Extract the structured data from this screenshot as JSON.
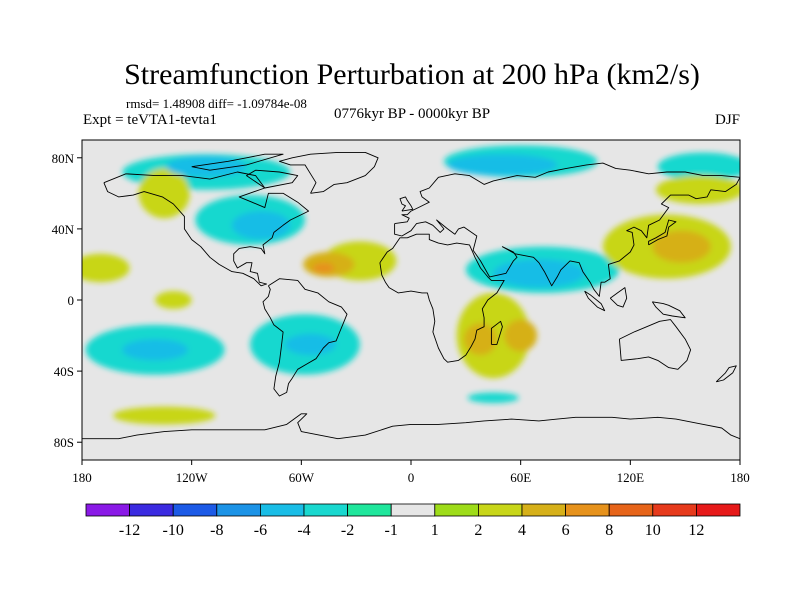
{
  "chart_data": {
    "type": "filled-contour-map",
    "title": "Streamfunction Perturbation at 200 hPa (km2/s)",
    "stats_line": "rmsd= 1.48908  diff= -1.09784e-08",
    "left_label": "Expt = teVTA1-tevta1",
    "center_label": "0776kyr BP - 0000kyr BP",
    "right_label": "DJF",
    "xlim": [
      -180,
      180
    ],
    "ylim": [
      -90,
      90
    ],
    "x_ticks": [
      {
        "value": -180,
        "label": "180"
      },
      {
        "value": -120,
        "label": "120W"
      },
      {
        "value": -60,
        "label": "60W"
      },
      {
        "value": 0,
        "label": "0"
      },
      {
        "value": 60,
        "label": "60E"
      },
      {
        "value": 120,
        "label": "120E"
      },
      {
        "value": 180,
        "label": "180"
      }
    ],
    "y_ticks": [
      {
        "value": 80,
        "label": "80N"
      },
      {
        "value": 40,
        "label": "40N"
      },
      {
        "value": 0,
        "label": "0"
      },
      {
        "value": -40,
        "label": "40S"
      },
      {
        "value": -80,
        "label": "80S"
      }
    ],
    "contour_levels": [
      -12,
      -10,
      -8,
      -6,
      -4,
      -2,
      -1,
      1,
      2,
      4,
      6,
      8,
      10,
      12
    ],
    "colorbar_labels": [
      "-12",
      "-10",
      "-8",
      "-6",
      "-4",
      "-2",
      "-1",
      "1",
      "2",
      "4",
      "6",
      "8",
      "10",
      "12"
    ],
    "colorbar_colors": [
      "#8a19e6",
      "#3b2ae0",
      "#1c5ae6",
      "#1c93e6",
      "#19bde6",
      "#19d8cf",
      "#1fe69c",
      "#e6e6e6",
      "#9edc19",
      "#c8d619",
      "#d6b019",
      "#e6921c",
      "#e66419",
      "#e63a1c",
      "#e61919"
    ],
    "anomaly_regions": [
      {
        "lon": 60,
        "lat": 78,
        "rlon": 42,
        "rlat": 9,
        "level": -2
      },
      {
        "lon": 50,
        "lat": 76,
        "rlon": 30,
        "rlat": 6,
        "level": -4
      },
      {
        "lon": 72,
        "lat": 17,
        "rlon": 42,
        "rlat": 13,
        "level": -2
      },
      {
        "lon": 70,
        "lat": 15,
        "rlon": 25,
        "rlat": 8,
        "level": -4
      },
      {
        "lon": -88,
        "lat": 45,
        "rlon": 30,
        "rlat": 14,
        "level": -2
      },
      {
        "lon": -82,
        "lat": 42,
        "rlon": 16,
        "rlat": 8,
        "level": -4
      },
      {
        "lon": -112,
        "lat": 72,
        "rlon": 46,
        "rlat": 10,
        "level": -2
      },
      {
        "lon": -112,
        "lat": 75,
        "rlon": 22,
        "rlat": 6,
        "level": -4
      },
      {
        "lon": -140,
        "lat": -28,
        "rlon": 38,
        "rlat": 14,
        "level": -2
      },
      {
        "lon": -140,
        "lat": -28,
        "rlon": 18,
        "rlat": 6,
        "level": -4
      },
      {
        "lon": -58,
        "lat": -25,
        "rlon": 30,
        "rlat": 17,
        "level": -2
      },
      {
        "lon": -55,
        "lat": -25,
        "rlon": 14,
        "rlat": 6,
        "level": -4
      },
      {
        "lon": 160,
        "lat": 75,
        "rlon": 25,
        "rlat": 8,
        "level": -2
      },
      {
        "lon": 45,
        "lat": -55,
        "rlon": 14,
        "rlat": 3,
        "level": -2
      },
      {
        "lon": -28,
        "lat": 22,
        "rlon": 20,
        "rlat": 11,
        "level": 2
      },
      {
        "lon": -45,
        "lat": 20,
        "rlon": 14,
        "rlat": 7,
        "level": 4
      },
      {
        "lon": -48,
        "lat": 18,
        "rlon": 6,
        "rlat": 3,
        "level": 6
      },
      {
        "lon": 45,
        "lat": -20,
        "rlon": 20,
        "rlat": 24,
        "level": 2
      },
      {
        "lon": 38,
        "lat": -22,
        "rlon": 9,
        "rlat": 9,
        "level": 4
      },
      {
        "lon": 60,
        "lat": -20,
        "rlon": 9,
        "rlat": 9,
        "level": 4
      },
      {
        "lon": 140,
        "lat": 30,
        "rlon": 35,
        "rlat": 18,
        "level": 2
      },
      {
        "lon": 148,
        "lat": 30,
        "rlon": 16,
        "rlat": 9,
        "level": 4
      },
      {
        "lon": 158,
        "lat": 62,
        "rlon": 24,
        "rlat": 8,
        "level": 2
      },
      {
        "lon": -170,
        "lat": 18,
        "rlon": 16,
        "rlat": 8,
        "level": 2
      },
      {
        "lon": -130,
        "lat": 0,
        "rlon": 10,
        "rlat": 5,
        "level": 2
      },
      {
        "lon": -135,
        "lat": 60,
        "rlon": 14,
        "rlat": 14,
        "level": 2
      },
      {
        "lon": -135,
        "lat": -65,
        "rlon": 28,
        "rlat": 5,
        "level": 2
      }
    ]
  }
}
